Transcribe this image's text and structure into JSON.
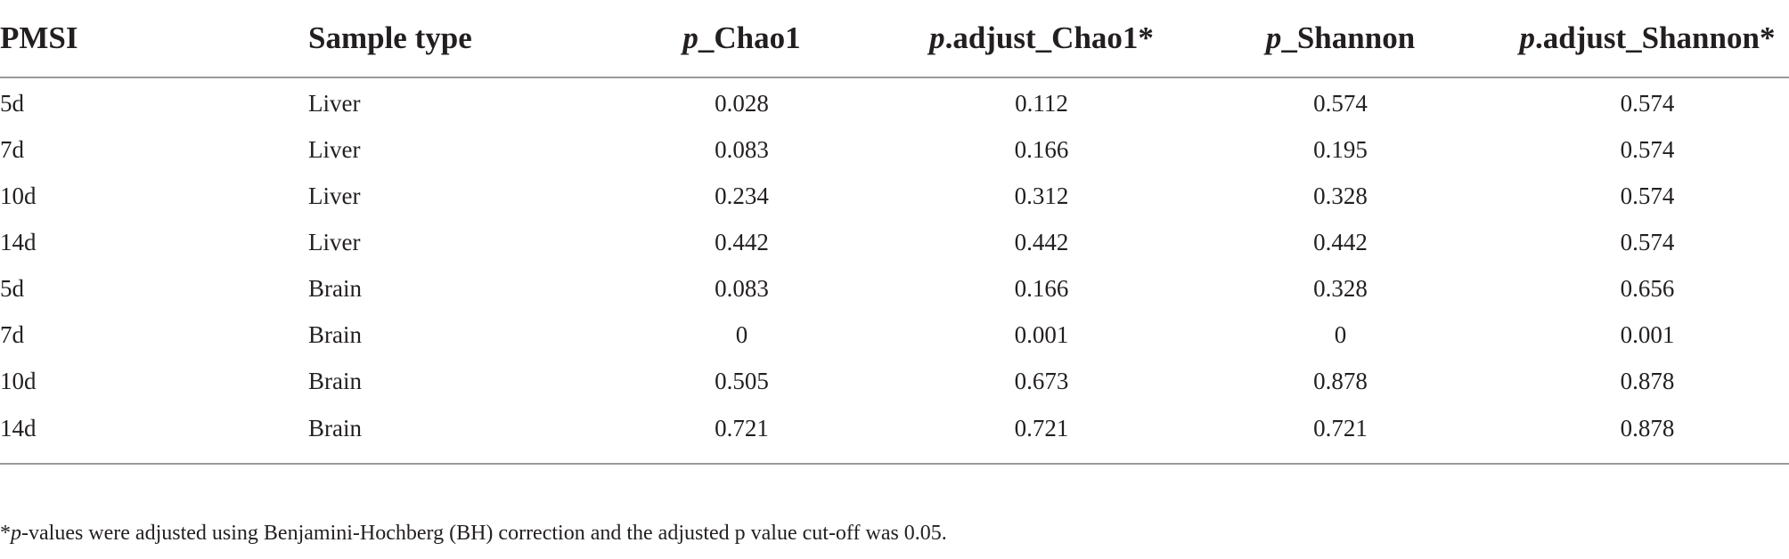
{
  "table": {
    "headers": [
      {
        "italic": "",
        "text": "PMSI"
      },
      {
        "italic": "",
        "text": "Sample type"
      },
      {
        "italic": "p",
        "text": "_Chao1"
      },
      {
        "italic": "p",
        "text": ".adjust_Chao1*"
      },
      {
        "italic": "p",
        "text": "_Shannon"
      },
      {
        "italic": "p",
        "text": ".adjust_Shannon*"
      }
    ],
    "rows": [
      [
        "5d",
        "Liver",
        "0.028",
        "0.112",
        "0.574",
        "0.574"
      ],
      [
        "7d",
        "Liver",
        "0.083",
        "0.166",
        "0.195",
        "0.574"
      ],
      [
        "10d",
        "Liver",
        "0.234",
        "0.312",
        "0.328",
        "0.574"
      ],
      [
        "14d",
        "Liver",
        "0.442",
        "0.442",
        "0.442",
        "0.574"
      ],
      [
        "5d",
        "Brain",
        "0.083",
        "0.166",
        "0.328",
        "0.656"
      ],
      [
        "7d",
        "Brain",
        "0",
        "0.001",
        "0",
        "0.001"
      ],
      [
        "10d",
        "Brain",
        "0.505",
        "0.673",
        "0.878",
        "0.878"
      ],
      [
        "14d",
        "Brain",
        "0.721",
        "0.721",
        "0.721",
        "0.878"
      ]
    ]
  },
  "footnote": {
    "marker": "*",
    "italic": "p",
    "text": "-values were adjusted using Benjamini-Hochberg (BH) correction and the adjusted p value cut-off was 0.05."
  }
}
